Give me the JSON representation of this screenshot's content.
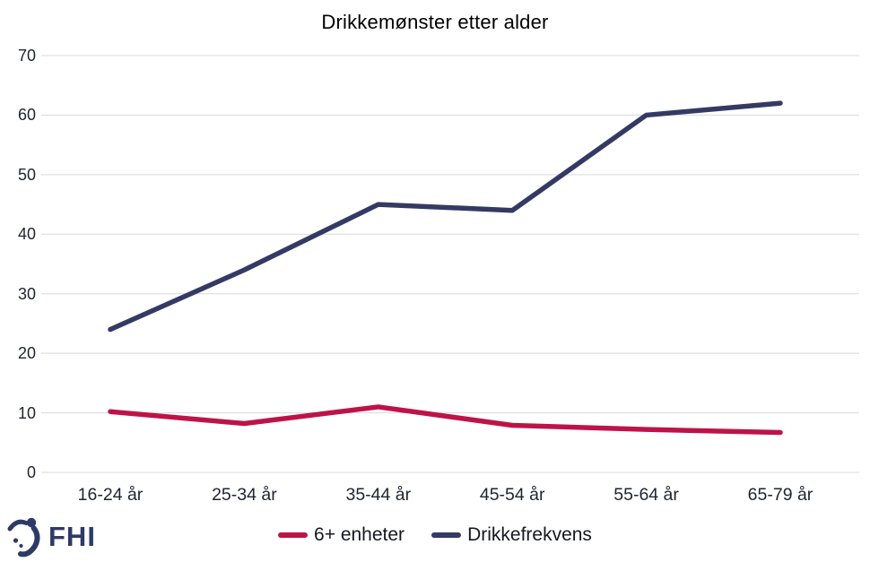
{
  "logo": {
    "text": "FHI",
    "color": "#2e3a66"
  },
  "chart_data": {
    "type": "line",
    "title": "Drikkemønster etter alder",
    "categories": [
      "16-24 år",
      "25-34 år",
      "35-44 år",
      "45-54 år",
      "55-64 år",
      "65-79 år"
    ],
    "series": [
      {
        "name": "6+ enheter",
        "color": "#be1348",
        "values": [
          10.2,
          8.2,
          11,
          7.9,
          7.2,
          6.7
        ]
      },
      {
        "name": "Drikkefrekvens",
        "color": "#343a63",
        "values": [
          24,
          34,
          45,
          44,
          60,
          62
        ]
      }
    ],
    "xlabel": "",
    "ylabel": "",
    "ylim": [
      0,
      70
    ],
    "ytick_step": 10,
    "yticks": [
      0,
      10,
      20,
      30,
      40,
      50,
      60,
      70
    ],
    "grid": "horizontal",
    "gridline_color": "#d9d9d9",
    "legend_position": "bottom"
  }
}
